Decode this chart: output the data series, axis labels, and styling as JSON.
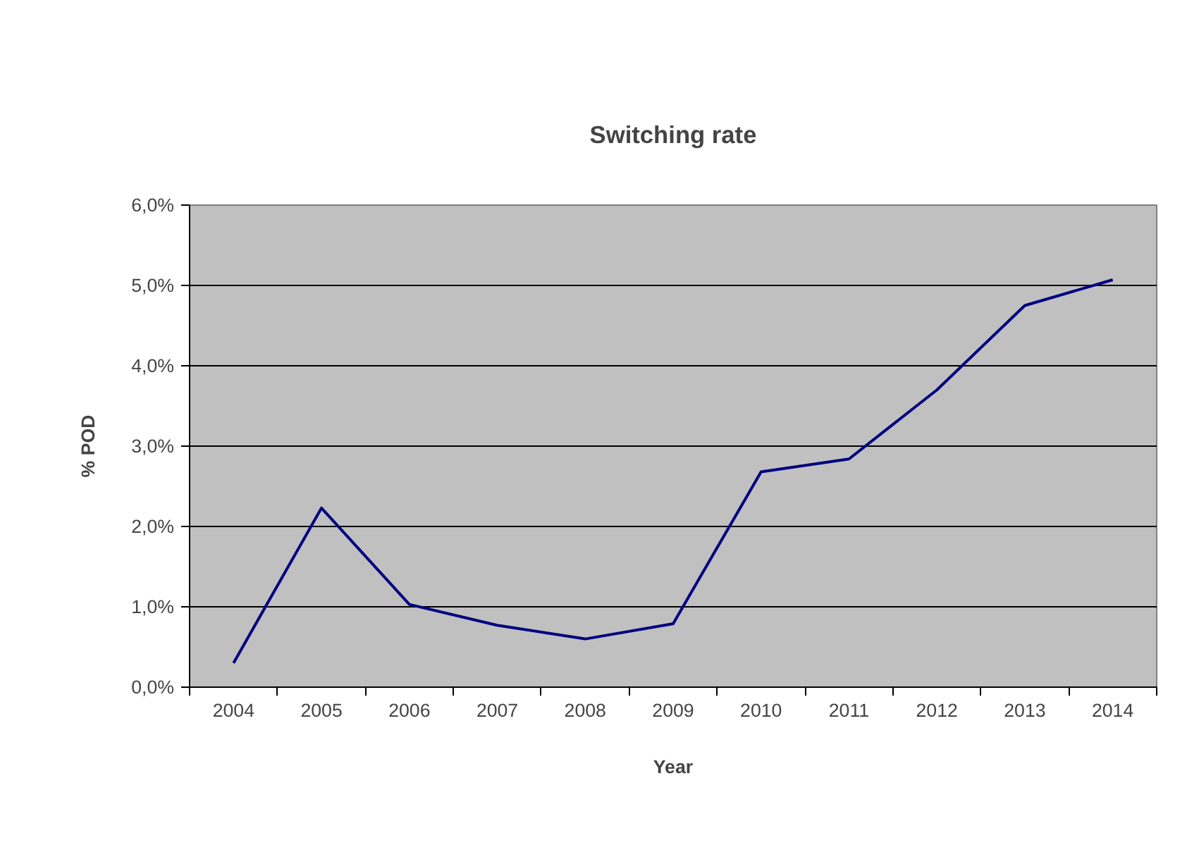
{
  "chart_data": {
    "type": "line",
    "title": "Switching rate",
    "xlabel": "Year",
    "ylabel": "% POD",
    "categories": [
      "2004",
      "2005",
      "2006",
      "2007",
      "2008",
      "2009",
      "2010",
      "2011",
      "2012",
      "2013",
      "2014"
    ],
    "series": [
      {
        "color": "#000080",
        "values": [
          0.3,
          2.23,
          1.03,
          0.77,
          0.6,
          0.79,
          2.68,
          2.84,
          3.7,
          4.75,
          5.07
        ]
      }
    ],
    "ylim": [
      0,
      6
    ],
    "yticks": [
      {
        "value": 0,
        "label": "0,0%"
      },
      {
        "value": 1,
        "label": "1,0%"
      },
      {
        "value": 2,
        "label": "2,0%"
      },
      {
        "value": 3,
        "label": "3,0%"
      },
      {
        "value": 4,
        "label": "4,0%"
      },
      {
        "value": 5,
        "label": "5,0%"
      },
      {
        "value": 6,
        "label": "6,0%"
      }
    ],
    "grid": "y",
    "marker": "none",
    "line_style": "solid"
  }
}
